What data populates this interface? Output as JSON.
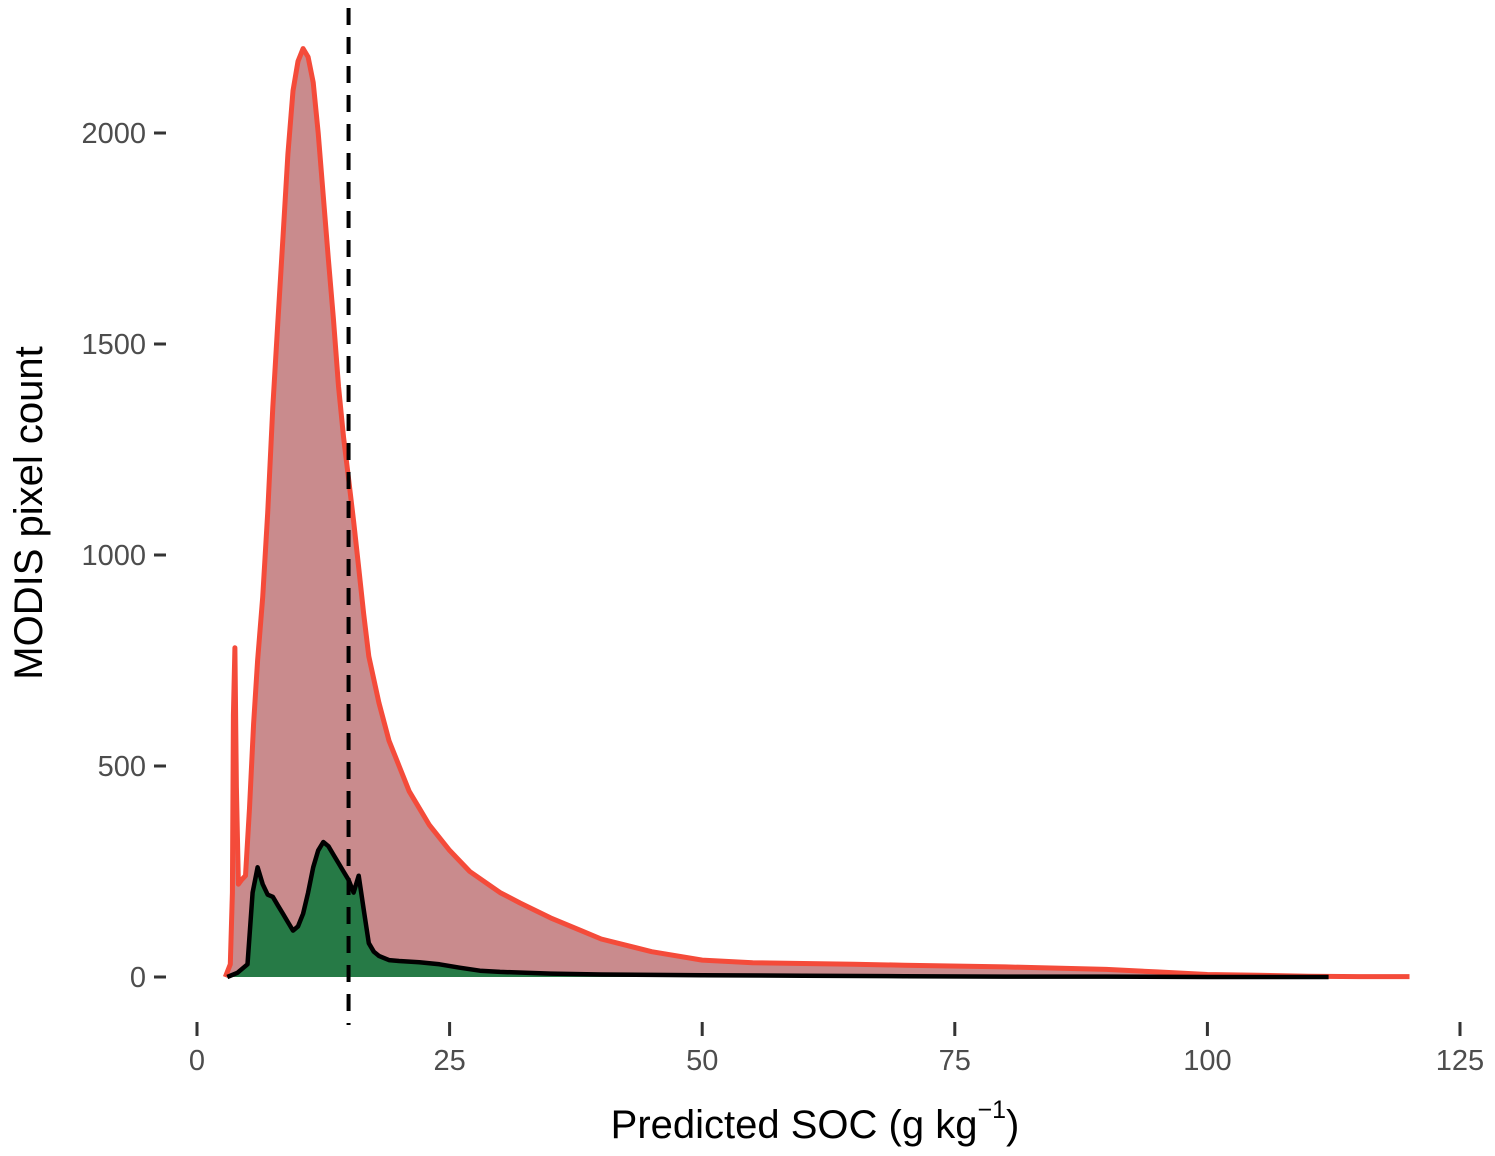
{
  "chart_data": {
    "type": "area",
    "xlabel": "Predicted SOC (g  kg",
    "xlabel_superscript": "−1",
    "xlabel_close": ")",
    "ylabel": "MODIS pixel count",
    "xlim": [
      0,
      125
    ],
    "ylim": [
      0,
      2200
    ],
    "x_ticks": [
      0,
      25,
      50,
      75,
      100,
      125
    ],
    "y_ticks": [
      0,
      500,
      1000,
      1500,
      2000
    ],
    "x_tick_labels": [
      "0",
      "25",
      "50",
      "75",
      "100",
      "125"
    ],
    "y_tick_labels": [
      "0",
      "500",
      "1000",
      "1500",
      "2000"
    ],
    "grid": false,
    "reference_line": {
      "x": 15,
      "style": "dashed",
      "color": "#000000"
    },
    "series": [
      {
        "line_color": "#f44b3a",
        "fill_color": "#c98b8d",
        "x": [
          2.8,
          3.3,
          3.5,
          3.6,
          3.75,
          3.9,
          4.1,
          4.4,
          4.8,
          5.2,
          5.6,
          6.0,
          6.5,
          7.0,
          7.5,
          8.0,
          8.5,
          9.0,
          9.5,
          10.0,
          10.5,
          11.0,
          11.5,
          12.0,
          12.5,
          13.0,
          13.5,
          14.0,
          14.5,
          15.0,
          15.5,
          16.0,
          16.5,
          17.0,
          18.0,
          19.0,
          20.0,
          21.0,
          22.0,
          23.0,
          25.0,
          27.0,
          30.0,
          32.0,
          35.0,
          38.0,
          40.0,
          45.0,
          50.0,
          55.0,
          60.0,
          65.0,
          70.0,
          80.0,
          90.0,
          95.0,
          100.0,
          105.0,
          110.0,
          115.0,
          120.0
        ],
        "y": [
          0,
          30,
          200,
          620,
          780,
          450,
          220,
          230,
          240,
          400,
          600,
          750,
          900,
          1100,
          1350,
          1550,
          1750,
          1950,
          2100,
          2170,
          2200,
          2180,
          2120,
          2000,
          1850,
          1700,
          1560,
          1400,
          1280,
          1180,
          1080,
          970,
          860,
          760,
          650,
          560,
          500,
          440,
          400,
          360,
          300,
          250,
          200,
          175,
          140,
          110,
          90,
          60,
          40,
          34,
          32,
          30,
          28,
          24,
          18,
          12,
          6,
          4,
          2,
          1,
          1
        ]
      },
      {
        "line_color": "#000000",
        "fill_color": "#267a46",
        "x": [
          3.0,
          4.0,
          5.0,
          5.5,
          6.0,
          6.5,
          7.0,
          7.5,
          8.0,
          8.5,
          9.0,
          9.5,
          10.0,
          10.5,
          11.0,
          11.5,
          12.0,
          12.5,
          13.0,
          13.5,
          14.0,
          14.5,
          15.0,
          15.5,
          16.0,
          16.5,
          17.0,
          17.5,
          18.0,
          19.0,
          20.0,
          22.0,
          24.0,
          26.0,
          28.0,
          30.0,
          35.0,
          40.0,
          50.0,
          60.0,
          70.0,
          80.0,
          90.0,
          100.0,
          112.0
        ],
        "y": [
          0,
          10,
          30,
          200,
          260,
          220,
          195,
          190,
          170,
          150,
          130,
          110,
          120,
          150,
          200,
          260,
          300,
          320,
          310,
          290,
          270,
          250,
          230,
          200,
          240,
          160,
          80,
          60,
          50,
          40,
          38,
          35,
          30,
          22,
          15,
          12,
          8,
          6,
          4,
          3,
          2,
          1,
          1,
          0,
          0
        ]
      }
    ]
  }
}
